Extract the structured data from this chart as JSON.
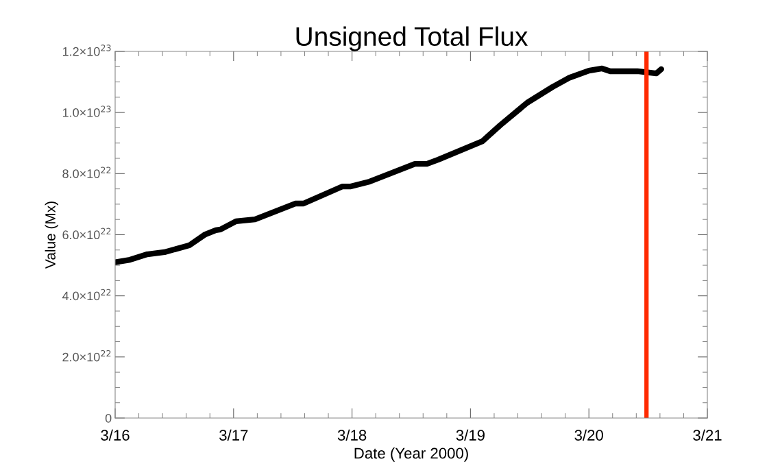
{
  "chart_data": {
    "type": "line",
    "title": "Unsigned Total Flux",
    "xlabel": "Date (Year 2000)",
    "ylabel": "Value (Mx)",
    "x": [
      "2000-03-16T00:00",
      "2000-03-16T03:00",
      "2000-03-16T06:30",
      "2000-03-16T10:00",
      "2000-03-16T15:00",
      "2000-03-16T18:15",
      "2000-03-16T20:25",
      "2000-03-16T21:20",
      "2000-03-17T00:30",
      "2000-03-17T04:20",
      "2000-03-17T12:30",
      "2000-03-17T14:10",
      "2000-03-17T22:05",
      "2000-03-17T23:45",
      "2000-03-18T03:35",
      "2000-03-18T12:45",
      "2000-03-18T15:10",
      "2000-03-18T17:30",
      "2000-03-19T02:25",
      "2000-03-19T06:00",
      "2000-03-19T11:30",
      "2000-03-19T16:35",
      "2000-03-19T19:55",
      "2000-03-20T00:00",
      "2000-03-20T02:40",
      "2000-03-20T04:20",
      "2000-03-20T09:50",
      "2000-03-20T13:40",
      "2000-03-20T14:40"
    ],
    "series": [
      {
        "color": "#000000",
        "values": [
          5.1e+22,
          5.18e+22,
          5.36e+22,
          5.43e+22,
          5.65e+22,
          6.01e+22,
          6.15e+22,
          6.17e+22,
          6.44e+22,
          6.5e+22,
          7.02e+22,
          7.02e+22,
          7.58e+22,
          7.58e+22,
          7.74e+22,
          8.32e+22,
          8.32e+22,
          8.46e+22,
          9.06e+22,
          9.58e+22,
          1.032e+23,
          1.083e+23,
          1.113e+23,
          1.137e+23,
          1.144e+23,
          1.135e+23,
          1.135e+23,
          1.128e+23,
          1.142e+23
        ]
      }
    ],
    "xlim": [
      "2000-03-16",
      "2000-03-21"
    ],
    "xticks": [
      {
        "value": "2000-03-16",
        "label": "3/16"
      },
      {
        "value": "2000-03-17",
        "label": "3/17"
      },
      {
        "value": "2000-03-18",
        "label": "3/18"
      },
      {
        "value": "2000-03-19",
        "label": "3/19"
      },
      {
        "value": "2000-03-20",
        "label": "3/20"
      },
      {
        "value": "2000-03-21",
        "label": "3/21"
      }
    ],
    "ylim": [
      0,
      1.2e+23
    ],
    "yticks": [
      {
        "value": 0,
        "label": "0"
      },
      {
        "value": 2e+22,
        "label": "2.0×10$^{22}$"
      },
      {
        "value": 4e+22,
        "label": "4.0×10$^{22}$"
      },
      {
        "value": 6e+22,
        "label": "6.0×10$^{22}$"
      },
      {
        "value": 8e+22,
        "label": "8.0×10$^{22}$"
      },
      {
        "value": 1e+23,
        "label": "1.0×10$^{23}$"
      },
      {
        "value": 1.2e+23,
        "label": "1.2×10$^{23}$"
      }
    ],
    "ref_lines": [
      {
        "axis": "x",
        "value": "2000-03-20T11:40",
        "color": "#ff2a00",
        "line_style": "solid"
      }
    ],
    "grid": false,
    "legend": false,
    "marker": "none",
    "line_style": "solid"
  }
}
